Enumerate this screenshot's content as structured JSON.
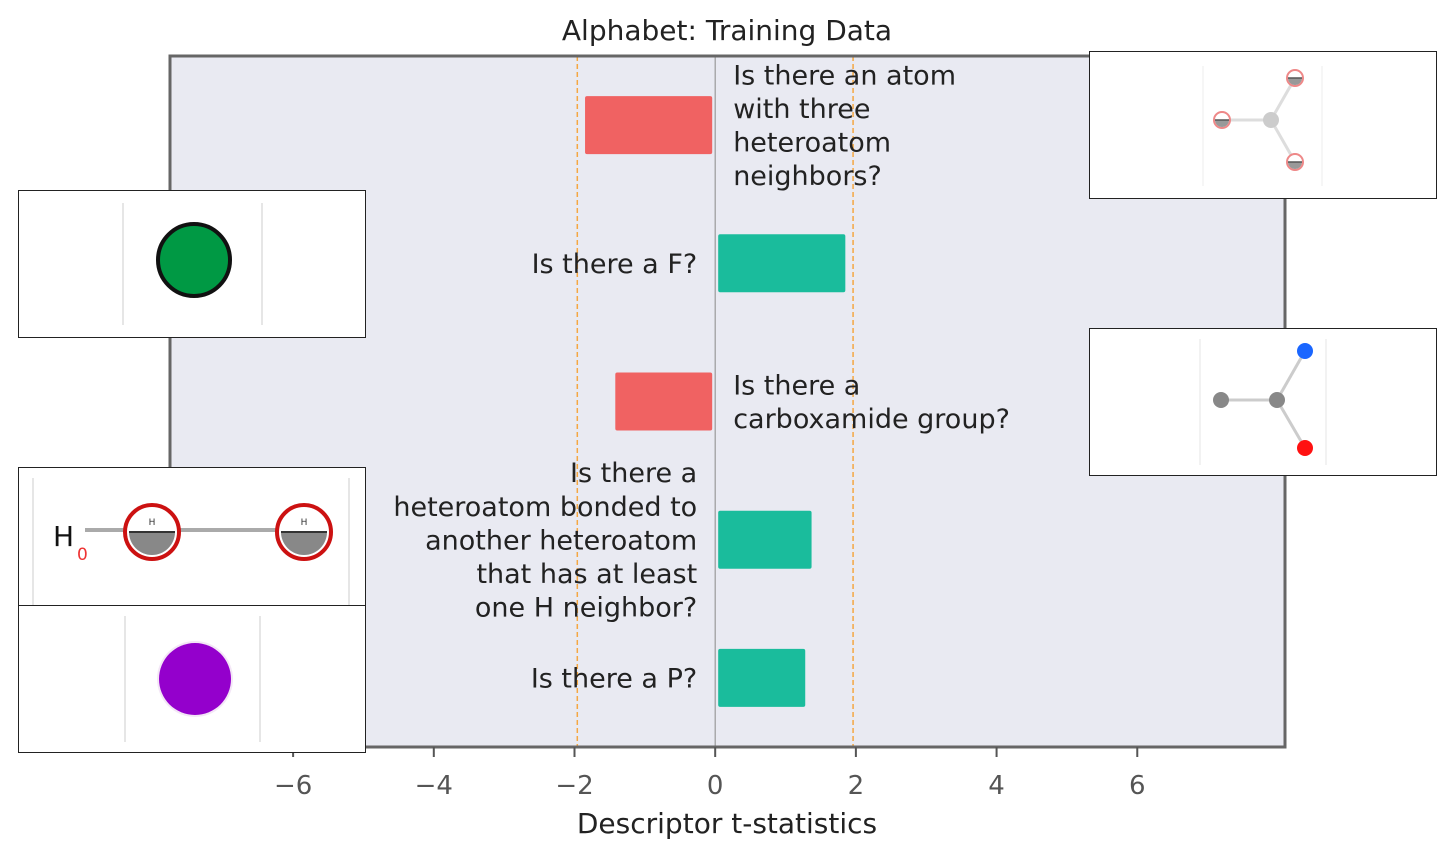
{
  "chart_data": {
    "type": "bar",
    "orientation": "horizontal",
    "title": "Alphabet: Training Data",
    "xlabel": "Descriptor t-statistics",
    "ylabel": "",
    "xlim": [
      -7.75,
      8.1
    ],
    "xticks": [
      -6,
      -4,
      -2,
      0,
      2,
      4,
      6
    ],
    "xtick_labels": [
      "−6",
      "−4",
      "−2",
      "0",
      "2",
      "4",
      "6"
    ],
    "reference_lines": [
      -1.96,
      1.96
    ],
    "grid": false,
    "categories": [
      "Is there an atom with three heteroatom neighbors?",
      "Is there a F?",
      "Is there a carboxamide group?",
      "Is there a heteroatom bonded to another heteroatom that has at least one H neighbor?",
      "Is there a P?"
    ],
    "label_lines": [
      [
        "Is there an atom",
        "with three",
        "heteroatom",
        "neighbors?"
      ],
      [
        "Is there a F?"
      ],
      [
        "Is there a",
        "carboxamide group?"
      ],
      [
        "Is there a",
        "heteroatom bonded to",
        "another heteroatom",
        "that has at least",
        "one H neighbor?"
      ],
      [
        "Is there a P?"
      ]
    ],
    "values": [
      -1.85,
      1.85,
      -1.42,
      1.37,
      1.28
    ],
    "colors": {
      "negative": "#f06262",
      "positive": "#1abc9c",
      "plot_background": "#e9eaf2",
      "reference_line": "#f5a742",
      "frame": "#666666"
    }
  }
}
